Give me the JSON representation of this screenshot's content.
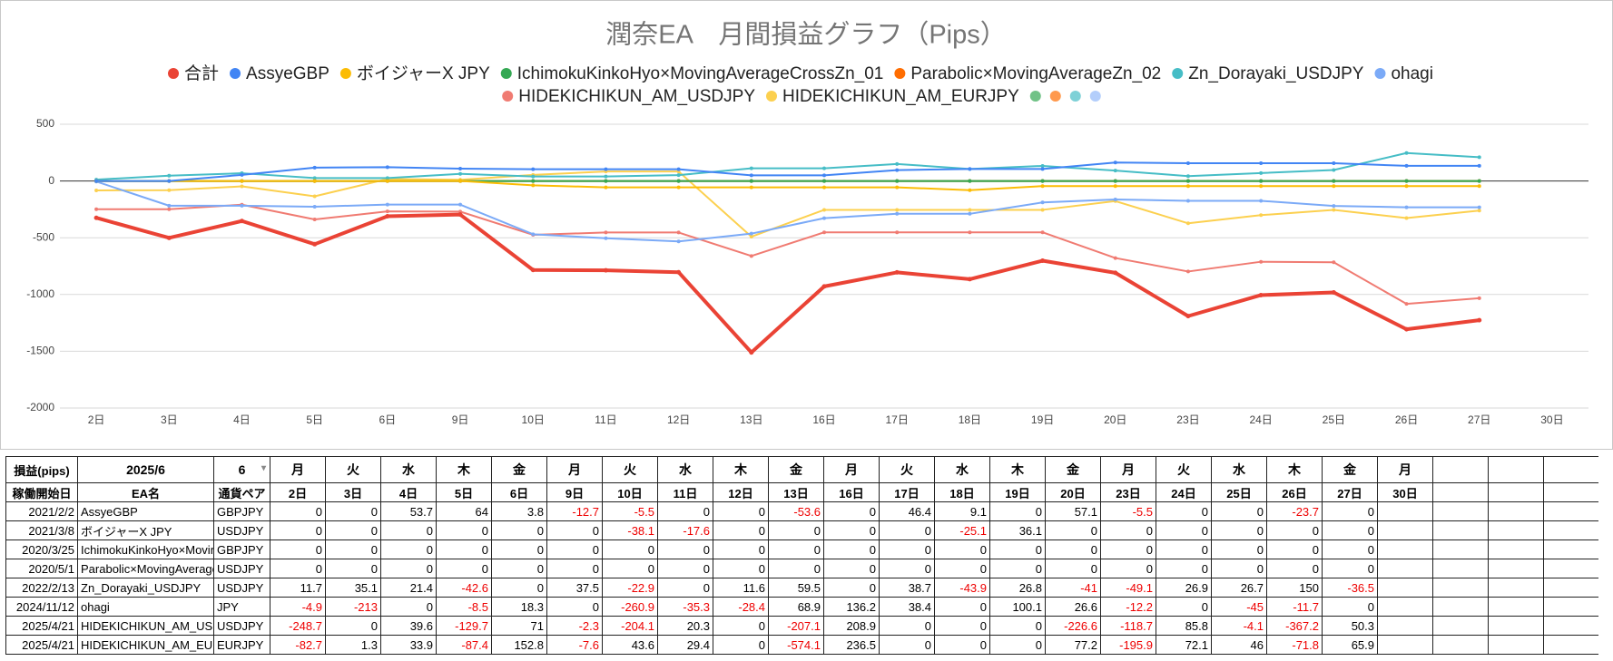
{
  "chart_data": {
    "type": "line",
    "title": "潤奈EA　月間損益グラフ（Pips）",
    "categories": [
      "2日",
      "3日",
      "4日",
      "5日",
      "6日",
      "9日",
      "10日",
      "11日",
      "12日",
      "13日",
      "16日",
      "17日",
      "18日",
      "19日",
      "20日",
      "23日",
      "24日",
      "25日",
      "26日",
      "27日",
      "30日"
    ],
    "ylim": [
      -2000,
      500
    ],
    "yticks": [
      500,
      0,
      -500,
      -1000,
      -1500,
      -2000
    ],
    "grid": true,
    "legend": "top",
    "series": [
      {
        "name": "合計",
        "color": "#ea4335",
        "values": [
          -324.6,
          -501.2,
          -352.6,
          -556.8,
          -310.9,
          -296,
          -783.9,
          -787.1,
          -803.9,
          -1510.3,
          -928.7,
          -805.2,
          -865.1,
          -702.1,
          -808.8,
          -1190.2,
          -1005.4,
          -981.8,
          -1306.2,
          -1226.5,
          null
        ]
      },
      {
        "name": "AssyeGBP",
        "color": "#4285f4",
        "values": [
          0,
          0,
          53.7,
          117.7,
          121.5,
          108.8,
          103.3,
          103.3,
          103.3,
          49.7,
          49.7,
          96.1,
          105.2,
          105.2,
          162.3,
          156.8,
          156.8,
          156.8,
          133.1,
          133.1,
          null
        ]
      },
      {
        "name": "ボイジャーX JPY",
        "color": "#fbbc04",
        "values": [
          0,
          0,
          0,
          0,
          0,
          0,
          -38.1,
          -55.7,
          -55.7,
          -55.7,
          -55.7,
          -55.7,
          -80.8,
          -44.7,
          -44.7,
          -44.7,
          -44.7,
          -44.7,
          -44.7,
          -44.7,
          null
        ]
      },
      {
        "name": "IchimokuKinkoHyo×MovingAverageCrossZn_01",
        "color": "#34a853",
        "values": [
          0,
          0,
          0,
          0,
          0,
          0,
          0,
          0,
          0,
          0,
          0,
          0,
          0,
          0,
          0,
          0,
          0,
          0,
          0,
          0,
          null
        ]
      },
      {
        "name": "Parabolic×MovingAverageZn_02",
        "color": "#ff6d01",
        "values": [
          0,
          0,
          0,
          0,
          0,
          0,
          0,
          0,
          0,
          0,
          0,
          0,
          0,
          0,
          0,
          0,
          0,
          0,
          0,
          0,
          null
        ]
      },
      {
        "name": "Zn_Dorayaki_USDJPY",
        "color": "#46bdc6",
        "values": [
          11.7,
          46.8,
          68.2,
          25.6,
          25.6,
          63.1,
          40.2,
          40.2,
          51.8,
          111.3,
          111.3,
          150,
          106.1,
          132.9,
          91.9,
          42.8,
          69.7,
          96.4,
          246.4,
          209.9,
          null
        ]
      },
      {
        "name": "ohagi",
        "color": "#7baaf7",
        "values": [
          -4.9,
          -217.9,
          -217.9,
          -226.4,
          -208.1,
          -208.1,
          -469,
          -504.3,
          -532.7,
          -463.8,
          -327.6,
          -289.2,
          -289.2,
          -189.1,
          -162.5,
          -174.7,
          -174.7,
          -219.7,
          -231.4,
          -231.4,
          null
        ]
      },
      {
        "name": "HIDEKICHIKUN_AM_USDJPY",
        "color": "#f07b72",
        "values": [
          -248.7,
          -248.7,
          -209.1,
          -338.8,
          -267.8,
          -270.1,
          -474.2,
          -453.9,
          -453.9,
          -661,
          -452.1,
          -452.1,
          -452.1,
          -452.1,
          -678.7,
          -797.4,
          -711.6,
          -715.7,
          -1082.9,
          -1032.6,
          null
        ]
      },
      {
        "name": "HIDEKICHIKUN_AM_EURJPY",
        "color": "#fcd04f",
        "values": [
          -82.7,
          -81.4,
          -47.5,
          -134.9,
          17.9,
          10.3,
          53.9,
          83.3,
          83.3,
          -490.8,
          -254.3,
          -254.3,
          -254.3,
          -254.3,
          -177.1,
          -373,
          -300.9,
          -254.9,
          -326.7,
          -260.8,
          null
        ]
      },
      {
        "name": null,
        "color": "#71c287",
        "values": [
          0,
          0,
          0,
          0,
          0,
          0,
          0,
          0,
          0,
          0,
          0,
          0,
          0,
          0,
          0,
          0,
          0,
          0,
          0,
          0,
          null
        ]
      },
      {
        "name": null,
        "color": "#ff994d",
        "values": [
          0,
          0,
          0,
          0,
          0,
          0,
          0,
          0,
          0,
          0,
          0,
          0,
          0,
          0,
          0,
          0,
          0,
          0,
          0,
          0,
          null
        ]
      },
      {
        "name": null,
        "color": "#7ed1d7",
        "values": [
          0,
          0,
          0,
          0,
          0,
          0,
          0,
          0,
          0,
          0,
          0,
          0,
          0,
          0,
          0,
          0,
          0,
          0,
          0,
          0,
          null
        ]
      },
      {
        "name": null,
        "color": "#b3cefb",
        "values": [
          0,
          0,
          0,
          0,
          0,
          0,
          0,
          0,
          0,
          0,
          0,
          0,
          0,
          0,
          0,
          0,
          0,
          0,
          0,
          0,
          null
        ]
      }
    ]
  },
  "table": {
    "header": [
      "損益(pips)",
      "2025/6",
      "6",
      "月",
      "火",
      "水",
      "木",
      "金",
      "月",
      "火",
      "水",
      "木",
      "金",
      "月",
      "火",
      "水",
      "木",
      "金",
      "月",
      "火",
      "水",
      "木",
      "金",
      "月"
    ],
    "columns": [
      "稼働開始日",
      "EA名",
      "通貨ペア"
    ],
    "rows": [
      {
        "start": "2021/2/2",
        "name": "AssyeGBP",
        "pair": "GBPJPY",
        "values": [
          0,
          0,
          53.7,
          64,
          3.8,
          -12.7,
          -5.5,
          0,
          0,
          -53.6,
          0,
          46.4,
          9.1,
          0,
          57.1,
          -5.5,
          0,
          0,
          -23.7,
          0
        ]
      },
      {
        "start": "2021/3/8",
        "name": "ボイジャーX JPY",
        "pair": "USDJPY",
        "values": [
          0,
          0,
          0,
          0,
          0,
          0,
          -38.1,
          -17.6,
          0,
          0,
          0,
          0,
          -25.1,
          36.1,
          0,
          0,
          0,
          0,
          0,
          0
        ]
      },
      {
        "start": "2020/3/25",
        "name": "IchimokuKinkoHyo×MovingAverageCrossZn_01",
        "pair": "GBPJPY",
        "values": [
          0,
          0,
          0,
          0,
          0,
          0,
          0,
          0,
          0,
          0,
          0,
          0,
          0,
          0,
          0,
          0,
          0,
          0,
          0,
          0
        ]
      },
      {
        "start": "2020/5/1",
        "name": "Parabolic×MovingAverageZn_02",
        "pair": "USDJPY",
        "values": [
          0,
          0,
          0,
          0,
          0,
          0,
          0,
          0,
          0,
          0,
          0,
          0,
          0,
          0,
          0,
          0,
          0,
          0,
          0,
          0
        ]
      },
      {
        "start": "2022/2/13",
        "name": "Zn_Dorayaki_USDJPY",
        "pair": "USDJPY",
        "values": [
          11.7,
          35.1,
          21.4,
          -42.6,
          0,
          37.5,
          -22.9,
          0,
          11.6,
          59.5,
          0,
          38.7,
          -43.9,
          26.8,
          -41,
          -49.1,
          26.9,
          26.7,
          150,
          -36.5
        ]
      },
      {
        "start": "2024/11/12",
        "name": "ohagi",
        "pair": "JPY",
        "values": [
          -4.9,
          -213,
          0,
          -8.5,
          18.3,
          0,
          -260.9,
          -35.3,
          -28.4,
          68.9,
          136.2,
          38.4,
          0,
          100.1,
          26.6,
          -12.2,
          0,
          -45,
          -11.7,
          0
        ]
      },
      {
        "start": "2025/4/21",
        "name": "HIDEKICHIKUN_AM_USDJPY",
        "pair": "USDJPY",
        "values": [
          -248.7,
          0,
          39.6,
          -129.7,
          71,
          -2.3,
          -204.1,
          20.3,
          0,
          -207.1,
          208.9,
          0,
          0,
          0,
          -226.6,
          -118.7,
          85.8,
          -4.1,
          -367.2,
          50.3
        ]
      },
      {
        "start": "2025/4/21",
        "name": "HIDEKICHIKUN_AM_EURJPY",
        "pair": "EURJPY",
        "values": [
          -82.7,
          1.3,
          33.9,
          -87.4,
          152.8,
          -7.6,
          43.6,
          29.4,
          0,
          -574.1,
          236.5,
          0,
          0,
          0,
          77.2,
          -195.9,
          72.1,
          46,
          -71.8,
          65.9
        ]
      }
    ]
  }
}
